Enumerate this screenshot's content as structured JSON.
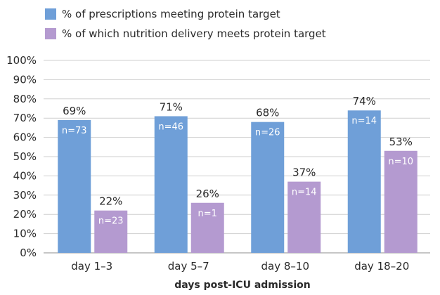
{
  "chart_data": {
    "type": "bar",
    "title": "",
    "xlabel": "days post-ICU admission",
    "ylabel": "",
    "ylim": [
      0,
      100
    ],
    "yticks": [
      "0%",
      "10%",
      "20%",
      "30%",
      "40%",
      "50%",
      "60%",
      "70%",
      "80%",
      "90%",
      "100%"
    ],
    "categories": [
      "day 1–3",
      "day 5–7",
      "day 8–10",
      "day 18–20"
    ],
    "series": [
      {
        "name": "% of prescriptions meeting protein target",
        "color": "#6f9fd8",
        "values": [
          69,
          71,
          68,
          74
        ],
        "value_labels": [
          "69%",
          "71%",
          "68%",
          "74%"
        ],
        "n_labels": [
          "n=73",
          "n=46",
          "n=26",
          "n=14"
        ]
      },
      {
        "name": "% of which nutrition delivery meets protein target",
        "color": "#b49ad0",
        "values": [
          22,
          26,
          37,
          53
        ],
        "value_labels": [
          "22%",
          "26%",
          "37%",
          "53%"
        ],
        "n_labels": [
          "n=23",
          "n=1",
          "n=14",
          "n=10"
        ]
      }
    ],
    "grid": true,
    "legend_position": "top-left"
  }
}
